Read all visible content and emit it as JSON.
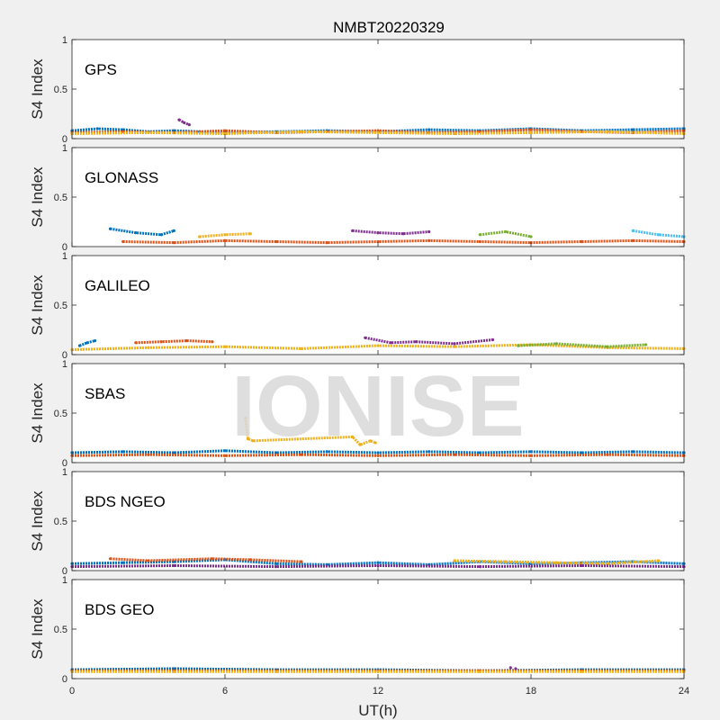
{
  "chart_data": {
    "type": "scatter",
    "title": "NMBT20220329",
    "xlabel": "UT(h)",
    "ylabel": "S4 Index",
    "xlim": [
      0,
      24
    ],
    "ylim": [
      0,
      1
    ],
    "xticks": [
      "0",
      "6",
      "12",
      "18",
      "24"
    ],
    "yticks": [
      "0",
      "0.5",
      "1"
    ],
    "grid": false,
    "watermark": "IONISE",
    "colors": [
      "#0072BD",
      "#D95319",
      "#EDB120",
      "#7E2F8E",
      "#77AC30",
      "#4DBEEE",
      "#A2142F"
    ],
    "panels": [
      {
        "label": "GPS",
        "series": [
          {
            "x": [
              0,
              1,
              2,
              3,
              4,
              5,
              6,
              8,
              10,
              12,
              14,
              16,
              18,
              20,
              22,
              24
            ],
            "y": [
              0.08,
              0.1,
              0.09,
              0.07,
              0.08,
              0.07,
              0.06,
              0.07,
              0.08,
              0.07,
              0.09,
              0.08,
              0.1,
              0.08,
              0.09,
              0.1
            ]
          },
          {
            "x": [
              0,
              2,
              4,
              6,
              8,
              10,
              12,
              14,
              16,
              18,
              20,
              22,
              24
            ],
            "y": [
              0.06,
              0.07,
              0.06,
              0.08,
              0.06,
              0.07,
              0.08,
              0.06,
              0.07,
              0.09,
              0.07,
              0.06,
              0.08
            ]
          },
          {
            "x": [
              0,
              3,
              6,
              9,
              12,
              15,
              18,
              21,
              24
            ],
            "y": [
              0.05,
              0.06,
              0.05,
              0.07,
              0.06,
              0.05,
              0.06,
              0.07,
              0.05
            ]
          },
          {
            "x": [
              4.2,
              4.4,
              4.6
            ],
            "y": [
              0.19,
              0.16,
              0.14
            ]
          }
        ]
      },
      {
        "label": "GLONASS",
        "series": [
          {
            "x": [
              1.5,
              2.5,
              3.5,
              4
            ],
            "y": [
              0.18,
              0.14,
              0.12,
              0.16
            ]
          },
          {
            "x": [
              2,
              4,
              6,
              8,
              10,
              12,
              14,
              16,
              18,
              20,
              22,
              24
            ],
            "y": [
              0.05,
              0.04,
              0.06,
              0.05,
              0.04,
              0.05,
              0.06,
              0.05,
              0.04,
              0.05,
              0.06,
              0.05
            ]
          },
          {
            "x": [
              5,
              6,
              7
            ],
            "y": [
              0.1,
              0.12,
              0.13
            ]
          },
          {
            "x": [
              11,
              12,
              13,
              14
            ],
            "y": [
              0.16,
              0.14,
              0.13,
              0.15
            ]
          },
          {
            "x": [
              16,
              17,
              18
            ],
            "y": [
              0.12,
              0.15,
              0.1
            ]
          },
          {
            "x": [
              22,
              23,
              24
            ],
            "y": [
              0.16,
              0.12,
              0.1
            ]
          }
        ]
      },
      {
        "label": "GALILEO",
        "series": [
          {
            "x": [
              0.3,
              0.6,
              0.9
            ],
            "y": [
              0.09,
              0.12,
              0.14
            ]
          },
          {
            "x": [
              2.5,
              3.5,
              4.5,
              5.5
            ],
            "y": [
              0.12,
              0.13,
              0.14,
              0.13
            ]
          },
          {
            "x": [
              0,
              3,
              6,
              9,
              12,
              15,
              18,
              21,
              24
            ],
            "y": [
              0.05,
              0.07,
              0.08,
              0.06,
              0.09,
              0.08,
              0.1,
              0.07,
              0.06
            ]
          },
          {
            "x": [
              11.5,
              12.5,
              13.5,
              15,
              16.5
            ],
            "y": [
              0.17,
              0.12,
              0.13,
              0.11,
              0.15
            ]
          },
          {
            "x": [
              17.5,
              19,
              21,
              22.5
            ],
            "y": [
              0.09,
              0.11,
              0.08,
              0.1
            ]
          }
        ]
      },
      {
        "label": "SBAS",
        "series": [
          {
            "x": [
              0,
              2,
              4,
              6,
              8,
              10,
              12,
              14,
              16,
              18,
              20,
              22,
              24
            ],
            "y": [
              0.1,
              0.11,
              0.1,
              0.12,
              0.1,
              0.11,
              0.1,
              0.11,
              0.1,
              0.11,
              0.1,
              0.11,
              0.1
            ]
          },
          {
            "x": [
              0,
              3,
              6,
              9,
              12,
              15,
              18,
              21,
              24
            ],
            "y": [
              0.07,
              0.08,
              0.07,
              0.08,
              0.07,
              0.08,
              0.07,
              0.08,
              0.07
            ]
          },
          {
            "x": [
              6.8,
              6.9,
              7.1,
              11,
              11.3,
              11.7,
              11.9
            ],
            "y": [
              0.45,
              0.24,
              0.22,
              0.26,
              0.18,
              0.22,
              0.2
            ]
          }
        ]
      },
      {
        "label": "BDS NGEO",
        "series": [
          {
            "x": [
              0,
              2,
              4,
              6,
              8,
              10,
              12,
              14,
              16,
              18,
              20,
              22,
              24
            ],
            "y": [
              0.07,
              0.08,
              0.09,
              0.11,
              0.07,
              0.06,
              0.08,
              0.06,
              0.09,
              0.07,
              0.08,
              0.09,
              0.07
            ]
          },
          {
            "x": [
              1.5,
              3,
              5.5,
              7,
              9
            ],
            "y": [
              0.12,
              0.1,
              0.12,
              0.11,
              0.09
            ]
          },
          {
            "x": [
              15,
              17,
              19,
              21,
              23
            ],
            "y": [
              0.1,
              0.09,
              0.08,
              0.07,
              0.1
            ]
          },
          {
            "x": [
              0,
              4,
              8,
              12,
              16,
              20,
              24
            ],
            "y": [
              0.04,
              0.05,
              0.04,
              0.05,
              0.04,
              0.05,
              0.04
            ]
          }
        ]
      },
      {
        "label": "BDS GEO",
        "series": [
          {
            "x": [
              0,
              4,
              8,
              12,
              16,
              20,
              24
            ],
            "y": [
              0.09,
              0.1,
              0.09,
              0.09,
              0.08,
              0.09,
              0.09
            ]
          },
          {
            "x": [
              0,
              4,
              8,
              12,
              16,
              20,
              24
            ],
            "y": [
              0.08,
              0.08,
              0.08,
              0.08,
              0.08,
              0.08,
              0.08
            ]
          },
          {
            "x": [
              0,
              4,
              8,
              12,
              16,
              20,
              24
            ],
            "y": [
              0.07,
              0.07,
              0.07,
              0.07,
              0.07,
              0.07,
              0.07
            ]
          },
          {
            "x": [
              17.2,
              17.4
            ],
            "y": [
              0.11,
              0.1
            ]
          }
        ]
      }
    ]
  }
}
